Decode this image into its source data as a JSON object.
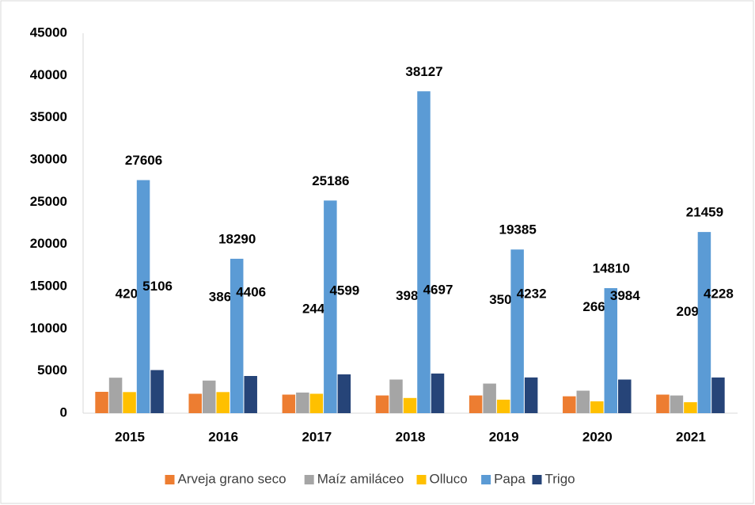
{
  "chart_data": {
    "type": "bar",
    "categories": [
      "2015",
      "2016",
      "2017",
      "2018",
      "2019",
      "2020",
      "2021"
    ],
    "series": [
      {
        "name": "Arveja grano seco",
        "color": "#ED7D31",
        "values": [
          2530,
          2300,
          2200,
          2100,
          2100,
          2000,
          2200
        ],
        "labels": false
      },
      {
        "name": "Maíz amiláceo",
        "color": "#A5A5A5",
        "values": [
          4205,
          3864,
          2445,
          3985,
          3508,
          2668,
          2096
        ],
        "labels": true
      },
      {
        "name": "Olluco",
        "color": "#FFC000",
        "values": [
          2500,
          2500,
          2300,
          1800,
          1600,
          1400,
          1300
        ],
        "labels": false
      },
      {
        "name": "Papa",
        "color": "#5B9BD5",
        "values": [
          27606,
          18290,
          25186,
          38127,
          19385,
          14810,
          21459
        ],
        "labels": true
      },
      {
        "name": "Trigo",
        "color": "#264478",
        "values": [
          5106,
          4406,
          4599,
          4697,
          4232,
          3984,
          4228
        ],
        "labels": true
      }
    ],
    "ylim": [
      0,
      45000
    ],
    "yticks": [
      0,
      5000,
      10000,
      15000,
      20000,
      25000,
      30000,
      35000,
      40000,
      45000
    ],
    "grid": false,
    "legend": "bottom"
  }
}
